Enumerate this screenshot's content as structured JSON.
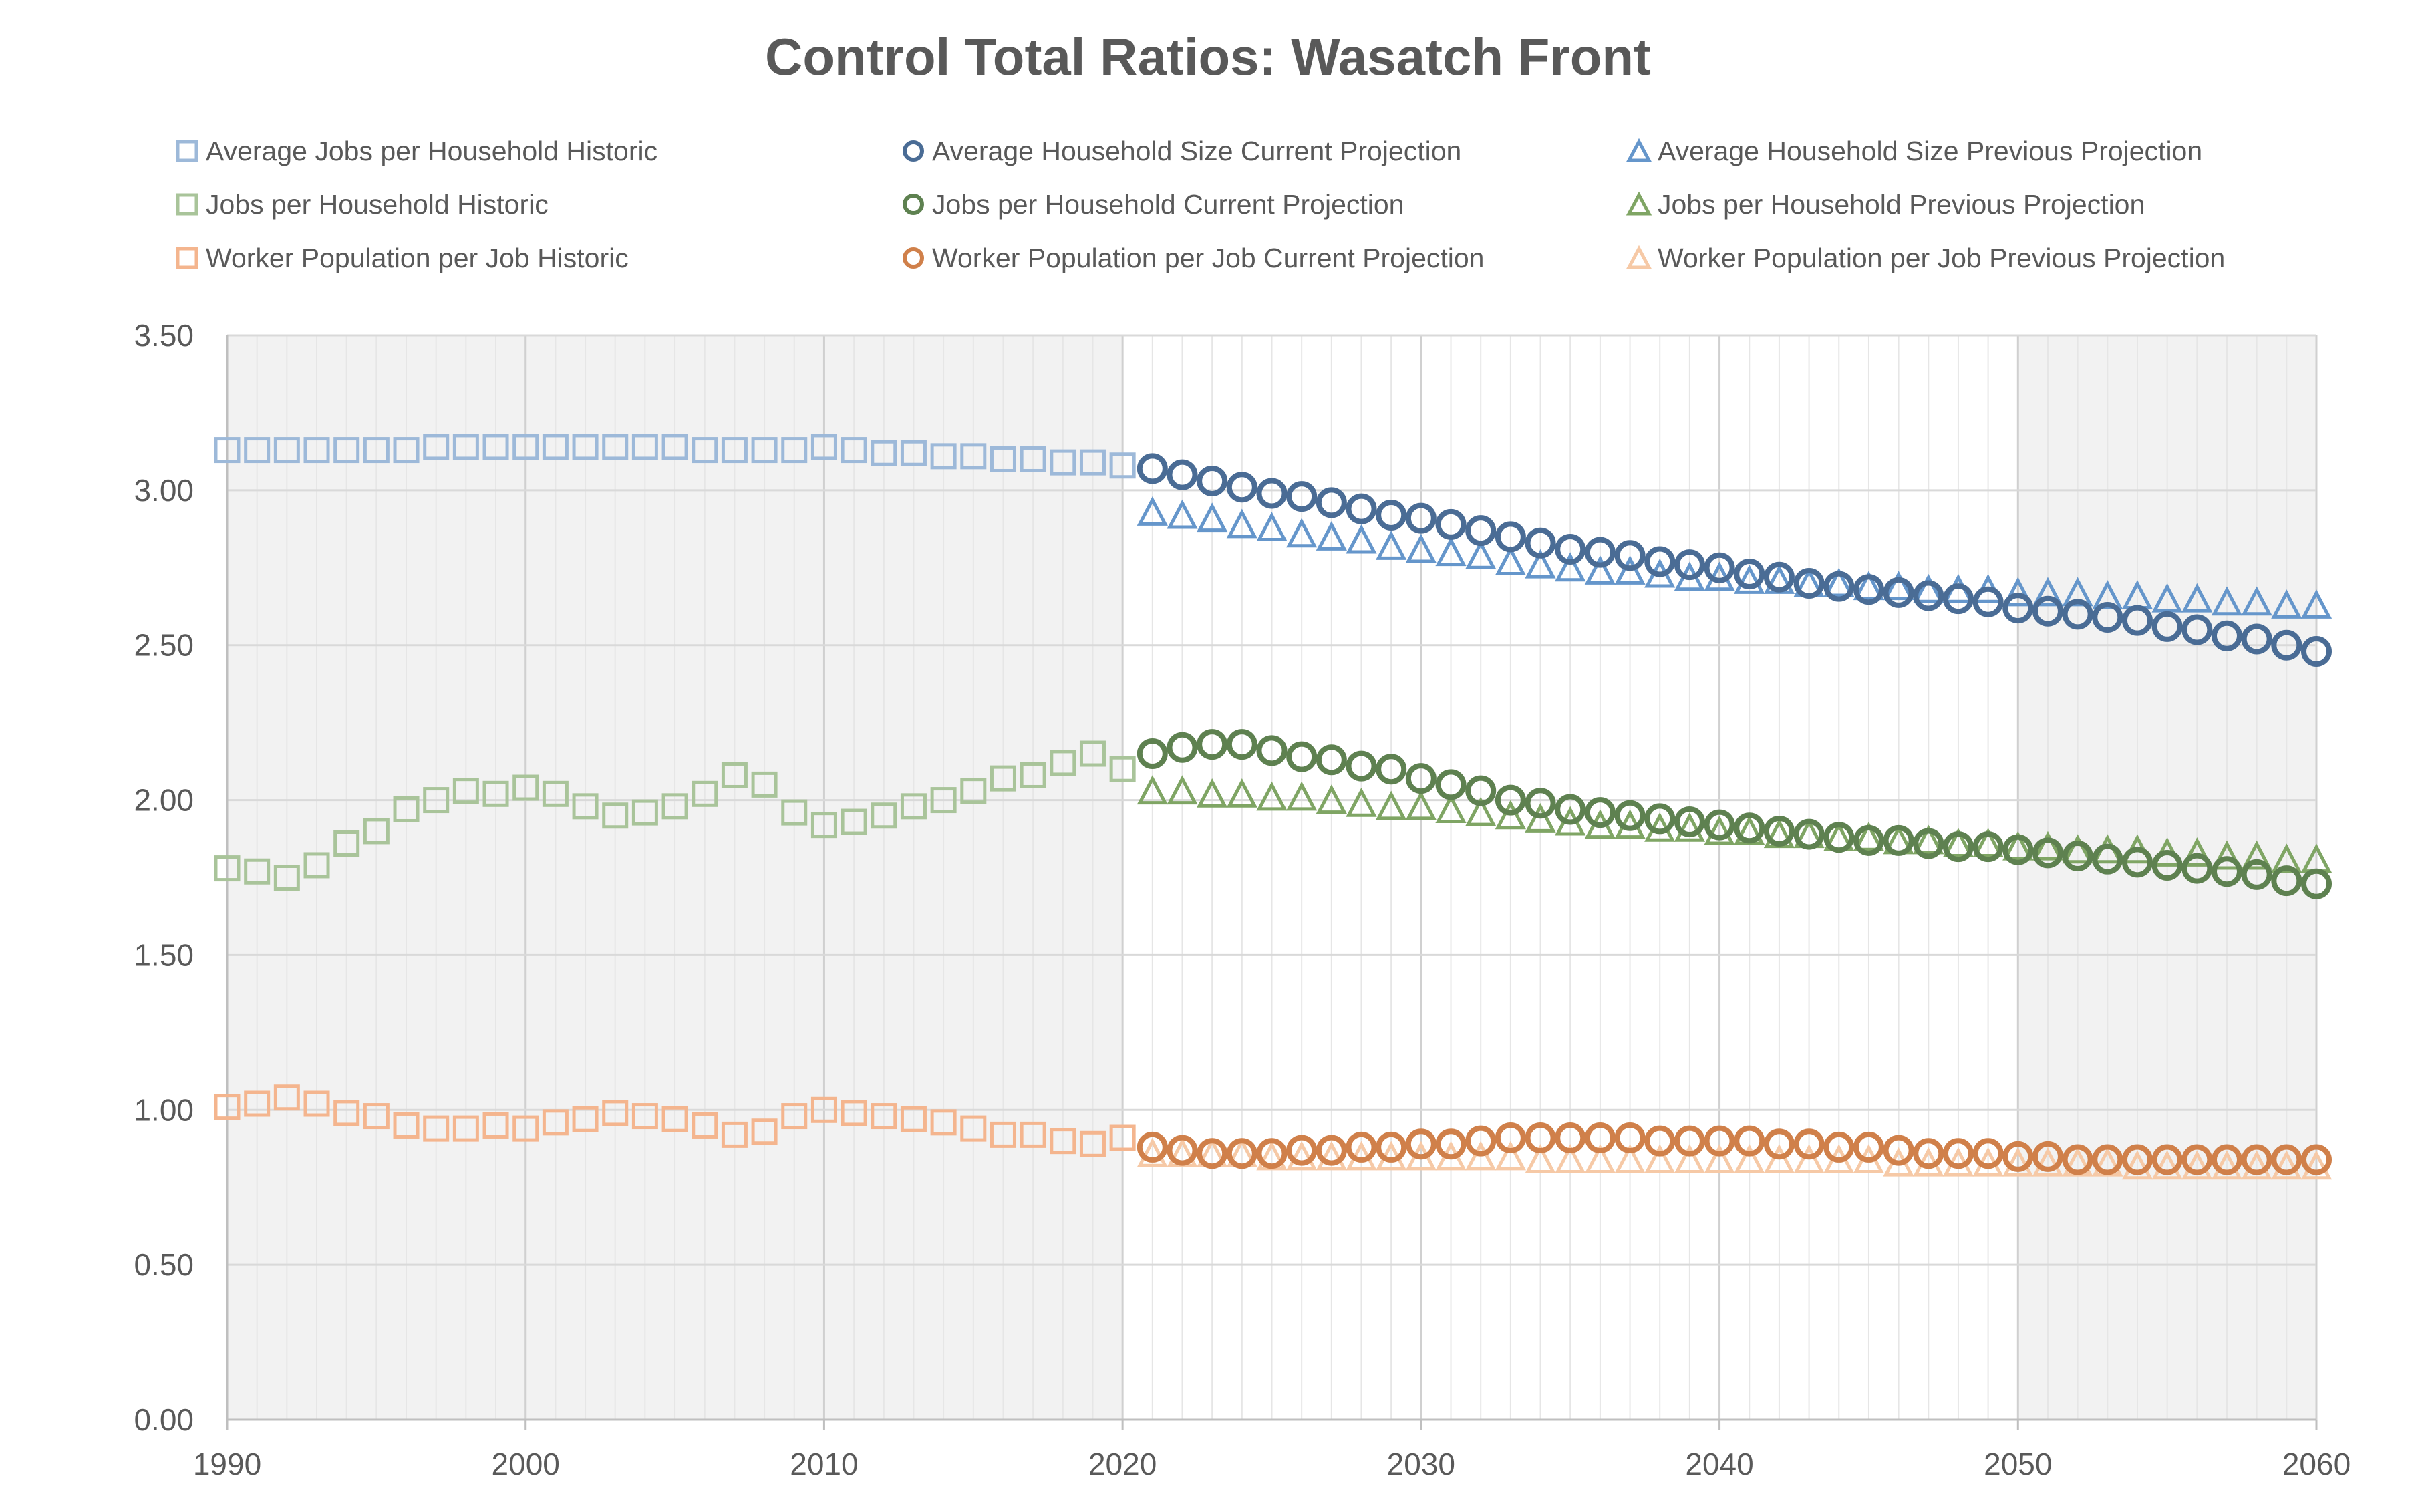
{
  "chart_data": {
    "type": "scatter",
    "title": "Control Total Ratios: Wasatch Front",
    "xlabel": "",
    "ylabel": "",
    "xlim": [
      1990,
      2060
    ],
    "ylim": [
      0,
      3.5
    ],
    "x_ticks": [
      "1990",
      "2000",
      "2010",
      "2020",
      "2030",
      "2040",
      "2050",
      "2060"
    ],
    "y_ticks": [
      "0.00",
      "0.50",
      "1.00",
      "1.50",
      "2.00",
      "2.50",
      "3.00",
      "3.50"
    ],
    "grid": true,
    "legend_position": "top",
    "shaded_ranges": [
      [
        1990,
        2020
      ],
      [
        2050,
        2060
      ]
    ],
    "colors": {
      "hh_historic": "#9DB9D9",
      "hh_current": "#4A6C95",
      "hh_previous": "#6596CB",
      "jobs_historic": "#A9C49A",
      "jobs_current": "#5E8150",
      "jobs_previous": "#7FA564",
      "worker_historic": "#F4B58E",
      "worker_current": "#D0804A",
      "worker_previous": "#F6C9A6"
    },
    "series": [
      {
        "name": "Average Jobs per Household Historic",
        "marker": "square",
        "color_key": "hh_historic",
        "x": [
          1990,
          1991,
          1992,
          1993,
          1994,
          1995,
          1996,
          1997,
          1998,
          1999,
          2000,
          2001,
          2002,
          2003,
          2004,
          2005,
          2006,
          2007,
          2008,
          2009,
          2010,
          2011,
          2012,
          2013,
          2014,
          2015,
          2016,
          2017,
          2018,
          2019,
          2020
        ],
        "y": [
          3.13,
          3.13,
          3.13,
          3.13,
          3.13,
          3.13,
          3.13,
          3.14,
          3.14,
          3.14,
          3.14,
          3.14,
          3.14,
          3.14,
          3.14,
          3.14,
          3.13,
          3.13,
          3.13,
          3.13,
          3.14,
          3.13,
          3.12,
          3.12,
          3.11,
          3.11,
          3.1,
          3.1,
          3.09,
          3.09,
          3.08
        ]
      },
      {
        "name": "Jobs per Household Historic",
        "marker": "square",
        "color_key": "jobs_historic",
        "x": [
          1990,
          1991,
          1992,
          1993,
          1994,
          1995,
          1996,
          1997,
          1998,
          1999,
          2000,
          2001,
          2002,
          2003,
          2004,
          2005,
          2006,
          2007,
          2008,
          2009,
          2010,
          2011,
          2012,
          2013,
          2014,
          2015,
          2016,
          2017,
          2018,
          2019,
          2020
        ],
        "y": [
          1.78,
          1.77,
          1.75,
          1.79,
          1.86,
          1.9,
          1.97,
          2.0,
          2.03,
          2.02,
          2.04,
          2.02,
          1.98,
          1.95,
          1.96,
          1.98,
          2.02,
          2.08,
          2.05,
          1.96,
          1.92,
          1.93,
          1.95,
          1.98,
          2.0,
          2.03,
          2.07,
          2.08,
          2.12,
          2.15,
          2.1
        ]
      },
      {
        "name": "Worker Population per Job Historic",
        "marker": "square",
        "color_key": "worker_historic",
        "x": [
          1990,
          1991,
          1992,
          1993,
          1994,
          1995,
          1996,
          1997,
          1998,
          1999,
          2000,
          2001,
          2002,
          2003,
          2004,
          2005,
          2006,
          2007,
          2008,
          2009,
          2010,
          2011,
          2012,
          2013,
          2014,
          2015,
          2016,
          2017,
          2018,
          2019,
          2020
        ],
        "y": [
          1.01,
          1.02,
          1.04,
          1.02,
          0.99,
          0.98,
          0.95,
          0.94,
          0.94,
          0.95,
          0.94,
          0.96,
          0.97,
          0.99,
          0.98,
          0.97,
          0.95,
          0.92,
          0.93,
          0.98,
          1.0,
          0.99,
          0.98,
          0.97,
          0.96,
          0.94,
          0.92,
          0.92,
          0.9,
          0.89,
          0.91
        ]
      },
      {
        "name": "Average Household Size Current Projection",
        "marker": "circle",
        "color_key": "hh_current",
        "x": [
          2021,
          2022,
          2023,
          2024,
          2025,
          2026,
          2027,
          2028,
          2029,
          2030,
          2031,
          2032,
          2033,
          2034,
          2035,
          2036,
          2037,
          2038,
          2039,
          2040,
          2041,
          2042,
          2043,
          2044,
          2045,
          2046,
          2047,
          2048,
          2049,
          2050,
          2051,
          2052,
          2053,
          2054,
          2055,
          2056,
          2057,
          2058,
          2059,
          2060
        ],
        "y": [
          3.07,
          3.05,
          3.03,
          3.01,
          2.99,
          2.98,
          2.96,
          2.94,
          2.92,
          2.91,
          2.89,
          2.87,
          2.85,
          2.83,
          2.81,
          2.8,
          2.79,
          2.77,
          2.76,
          2.75,
          2.73,
          2.72,
          2.7,
          2.69,
          2.68,
          2.67,
          2.66,
          2.65,
          2.64,
          2.62,
          2.61,
          2.6,
          2.59,
          2.58,
          2.56,
          2.55,
          2.53,
          2.52,
          2.5,
          2.48
        ]
      },
      {
        "name": "Jobs per Household Current Projection",
        "marker": "circle",
        "color_key": "jobs_current",
        "x": [
          2021,
          2022,
          2023,
          2024,
          2025,
          2026,
          2027,
          2028,
          2029,
          2030,
          2031,
          2032,
          2033,
          2034,
          2035,
          2036,
          2037,
          2038,
          2039,
          2040,
          2041,
          2042,
          2043,
          2044,
          2045,
          2046,
          2047,
          2048,
          2049,
          2050,
          2051,
          2052,
          2053,
          2054,
          2055,
          2056,
          2057,
          2058,
          2059,
          2060
        ],
        "y": [
          2.15,
          2.17,
          2.18,
          2.18,
          2.16,
          2.14,
          2.13,
          2.11,
          2.1,
          2.07,
          2.05,
          2.03,
          2.0,
          1.99,
          1.97,
          1.96,
          1.95,
          1.94,
          1.93,
          1.92,
          1.91,
          1.9,
          1.89,
          1.88,
          1.87,
          1.87,
          1.86,
          1.85,
          1.85,
          1.84,
          1.83,
          1.82,
          1.81,
          1.8,
          1.79,
          1.78,
          1.77,
          1.76,
          1.74,
          1.73
        ]
      },
      {
        "name": "Worker Population per Job Current Projection",
        "marker": "circle",
        "color_key": "worker_current",
        "x": [
          2021,
          2022,
          2023,
          2024,
          2025,
          2026,
          2027,
          2028,
          2029,
          2030,
          2031,
          2032,
          2033,
          2034,
          2035,
          2036,
          2037,
          2038,
          2039,
          2040,
          2041,
          2042,
          2043,
          2044,
          2045,
          2046,
          2047,
          2048,
          2049,
          2050,
          2051,
          2052,
          2053,
          2054,
          2055,
          2056,
          2057,
          2058,
          2059,
          2060
        ],
        "y": [
          0.88,
          0.87,
          0.86,
          0.86,
          0.86,
          0.87,
          0.87,
          0.88,
          0.88,
          0.89,
          0.89,
          0.9,
          0.91,
          0.91,
          0.91,
          0.91,
          0.91,
          0.9,
          0.9,
          0.9,
          0.9,
          0.89,
          0.89,
          0.88,
          0.88,
          0.87,
          0.86,
          0.86,
          0.86,
          0.85,
          0.85,
          0.84,
          0.84,
          0.84,
          0.84,
          0.84,
          0.84,
          0.84,
          0.84,
          0.84
        ]
      },
      {
        "name": "Average Household Size Previous Projection",
        "marker": "triangle",
        "color_key": "hh_previous",
        "x": [
          2021,
          2022,
          2023,
          2024,
          2025,
          2026,
          2027,
          2028,
          2029,
          2030,
          2031,
          2032,
          2033,
          2034,
          2035,
          2036,
          2037,
          2038,
          2039,
          2040,
          2041,
          2042,
          2043,
          2044,
          2045,
          2046,
          2047,
          2048,
          2049,
          2050,
          2051,
          2052,
          2053,
          2054,
          2055,
          2056,
          2057,
          2058,
          2059,
          2060
        ],
        "y": [
          2.93,
          2.92,
          2.91,
          2.89,
          2.88,
          2.86,
          2.85,
          2.84,
          2.82,
          2.81,
          2.8,
          2.79,
          2.77,
          2.76,
          2.75,
          2.74,
          2.74,
          2.73,
          2.72,
          2.72,
          2.71,
          2.71,
          2.7,
          2.7,
          2.69,
          2.69,
          2.68,
          2.68,
          2.68,
          2.67,
          2.67,
          2.67,
          2.66,
          2.66,
          2.65,
          2.65,
          2.64,
          2.64,
          2.63,
          2.63
        ]
      },
      {
        "name": "Jobs per Household Previous Projection",
        "marker": "triangle",
        "color_key": "jobs_previous",
        "x": [
          2021,
          2022,
          2023,
          2024,
          2025,
          2026,
          2027,
          2028,
          2029,
          2030,
          2031,
          2032,
          2033,
          2034,
          2035,
          2036,
          2037,
          2038,
          2039,
          2040,
          2041,
          2042,
          2043,
          2044,
          2045,
          2046,
          2047,
          2048,
          2049,
          2050,
          2051,
          2052,
          2053,
          2054,
          2055,
          2056,
          2057,
          2058,
          2059,
          2060
        ],
        "y": [
          2.03,
          2.03,
          2.02,
          2.02,
          2.01,
          2.01,
          2.0,
          1.99,
          1.98,
          1.98,
          1.97,
          1.96,
          1.95,
          1.94,
          1.93,
          1.92,
          1.92,
          1.91,
          1.91,
          1.9,
          1.9,
          1.89,
          1.89,
          1.88,
          1.88,
          1.87,
          1.87,
          1.86,
          1.86,
          1.85,
          1.85,
          1.84,
          1.84,
          1.84,
          1.83,
          1.83,
          1.82,
          1.82,
          1.81,
          1.81
        ]
      },
      {
        "name": "Worker Population per Job Previous Projection",
        "marker": "triangle",
        "color_key": "worker_previous",
        "x": [
          2021,
          2022,
          2023,
          2024,
          2025,
          2026,
          2027,
          2028,
          2029,
          2030,
          2031,
          2032,
          2033,
          2034,
          2035,
          2036,
          2037,
          2038,
          2039,
          2040,
          2041,
          2042,
          2043,
          2044,
          2045,
          2046,
          2047,
          2048,
          2049,
          2050,
          2051,
          2052,
          2053,
          2054,
          2055,
          2056,
          2057,
          2058,
          2059,
          2060
        ],
        "y": [
          0.86,
          0.86,
          0.86,
          0.86,
          0.85,
          0.85,
          0.85,
          0.85,
          0.85,
          0.85,
          0.85,
          0.85,
          0.85,
          0.84,
          0.84,
          0.84,
          0.84,
          0.84,
          0.84,
          0.84,
          0.84,
          0.84,
          0.84,
          0.84,
          0.84,
          0.83,
          0.83,
          0.83,
          0.83,
          0.83,
          0.83,
          0.83,
          0.83,
          0.82,
          0.82,
          0.82,
          0.82,
          0.82,
          0.82,
          0.82
        ]
      }
    ]
  }
}
